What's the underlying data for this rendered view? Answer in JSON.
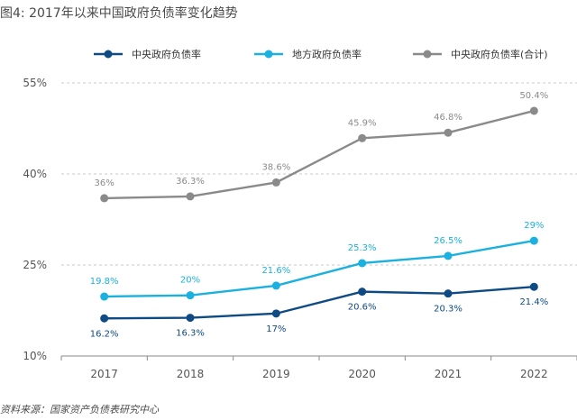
{
  "figure_title": "图4: 2017年以来中国政府负债率变化趋势",
  "source": "资料来源：国家资产负债表研究中心",
  "colors": {
    "central": "#0e4a84",
    "local": "#1ab0e0",
    "total": "#8a8a8a",
    "grid": "#c8c8c8",
    "axis": "#888888",
    "text": "#555555"
  },
  "chart_data": {
    "type": "line",
    "title": "",
    "xlabel": "",
    "ylabel": "",
    "x": [
      "2017",
      "2018",
      "2019",
      "2020",
      "2021",
      "2022"
    ],
    "ylim": [
      10,
      55
    ],
    "yticks": [
      10,
      25,
      40,
      55
    ],
    "ytick_labels": [
      "10%",
      "25%",
      "40%",
      "55%"
    ],
    "grid": "horizontal-dashed",
    "legend_position": "top",
    "series": [
      {
        "name": "中央政府负债率",
        "color": "#0e4a84",
        "values": [
          16.2,
          16.3,
          17.0,
          20.6,
          20.3,
          21.4
        ],
        "labels": [
          "16.2%",
          "16.3%",
          "17%",
          "20.6%",
          "20.3%",
          "21.4%"
        ],
        "label_position": "below"
      },
      {
        "name": "地方政府负债率",
        "color": "#1ab0e0",
        "values": [
          19.8,
          20.0,
          21.6,
          25.3,
          26.5,
          29.0
        ],
        "labels": [
          "19.8%",
          "20%",
          "21.6%",
          "25.3%",
          "26.5%",
          "29%"
        ],
        "label_position": "above"
      },
      {
        "name": "中央政府负债率(合计)",
        "color": "#8a8a8a",
        "values": [
          36.0,
          36.3,
          38.6,
          45.9,
          46.8,
          50.4
        ],
        "labels": [
          "36%",
          "36.3%",
          "38.6%",
          "45.9%",
          "46.8%",
          "50.4%"
        ],
        "label_position": "above"
      }
    ]
  }
}
